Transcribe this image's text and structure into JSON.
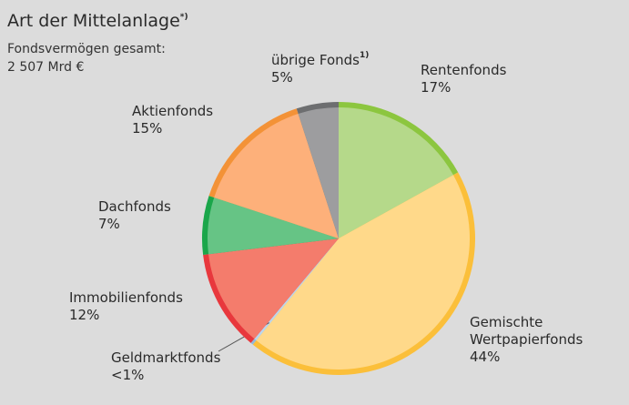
{
  "chart_data": {
    "type": "pie",
    "title": "Art der Mittelanlage",
    "title_marker": "*)",
    "subtitle": [
      "Fondsvermögen gesamt:",
      "2 507 Mrd €"
    ],
    "categories": [
      "Rentenfonds",
      "Gemischte Wertpapierfonds",
      "Geldmarktfonds",
      "Immobilienfonds",
      "Dachfonds",
      "Aktienfonds",
      "übrige Fonds"
    ],
    "category_markers": [
      null,
      null,
      null,
      null,
      null,
      null,
      "1)"
    ],
    "values": [
      17,
      44,
      0.3,
      12,
      7,
      15,
      5
    ],
    "value_labels": [
      "17%",
      "44%",
      "<1%",
      "12%",
      "7%",
      "15%",
      "5%"
    ],
    "colors": [
      "#b5d98a",
      "#ffd98a",
      "#bcd6ec",
      "#f47c6c",
      "#66c485",
      "#fdb07a",
      "#9d9d9f"
    ],
    "rim_colors": [
      "#8cc63f",
      "#fbbf3a",
      "#8fb8dc",
      "#e8383d",
      "#1aa64a",
      "#f39237",
      "#6d6e70"
    ]
  }
}
